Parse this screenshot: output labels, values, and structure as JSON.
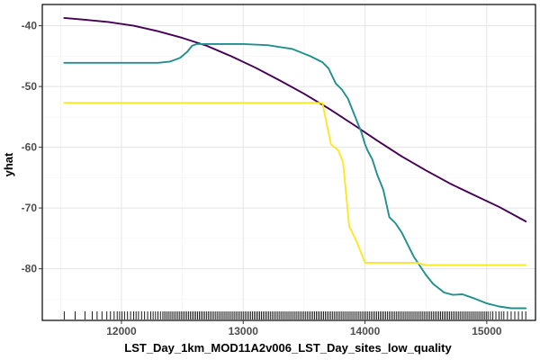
{
  "chart_data": {
    "type": "line",
    "xlabel": "LST_Day_1km_MOD11A2v006_LST_Day_sites_low_quality",
    "ylabel": "yhat",
    "xlim": [
      11350,
      15400
    ],
    "ylim": [
      -88.5,
      -36.5
    ],
    "x_ticks": [
      {
        "value": 12000,
        "label": "12000"
      },
      {
        "value": 13000,
        "label": "13000"
      },
      {
        "value": 14000,
        "label": "14000"
      },
      {
        "value": 15000,
        "label": "15000"
      }
    ],
    "y_ticks": [
      {
        "value": -40,
        "label": "-40"
      },
      {
        "value": -50,
        "label": "-50"
      },
      {
        "value": -60,
        "label": "-60"
      },
      {
        "value": -70,
        "label": "-70"
      },
      {
        "value": -80,
        "label": "-80"
      }
    ],
    "grid": true,
    "legend": "none",
    "series": [
      {
        "color": "#440154",
        "points": [
          [
            11530,
            -38.7
          ],
          [
            11700,
            -39.0
          ],
          [
            11900,
            -39.4
          ],
          [
            12100,
            -40.0
          ],
          [
            12300,
            -40.9
          ],
          [
            12500,
            -42.0
          ],
          [
            12700,
            -43.3
          ],
          [
            12900,
            -45.0
          ],
          [
            13100,
            -46.9
          ],
          [
            13300,
            -49.0
          ],
          [
            13500,
            -51.2
          ],
          [
            13700,
            -53.6
          ],
          [
            13900,
            -56.2
          ],
          [
            14100,
            -58.9
          ],
          [
            14300,
            -61.5
          ],
          [
            14500,
            -63.8
          ],
          [
            14700,
            -66.0
          ],
          [
            14900,
            -67.9
          ],
          [
            15100,
            -69.8
          ],
          [
            15320,
            -72.2
          ]
        ]
      },
      {
        "color": "#21908C",
        "points": [
          [
            11530,
            -46.1
          ],
          [
            11800,
            -46.1
          ],
          [
            12100,
            -46.1
          ],
          [
            12300,
            -46.1
          ],
          [
            12400,
            -45.9
          ],
          [
            12480,
            -45.3
          ],
          [
            12540,
            -44.3
          ],
          [
            12580,
            -43.3
          ],
          [
            12620,
            -43.0
          ],
          [
            12800,
            -43.0
          ],
          [
            13000,
            -43.0
          ],
          [
            13200,
            -43.2
          ],
          [
            13400,
            -43.8
          ],
          [
            13550,
            -45.0
          ],
          [
            13650,
            -46.0
          ],
          [
            13700,
            -47.0
          ],
          [
            13760,
            -49.5
          ],
          [
            13810,
            -50.5
          ],
          [
            13860,
            -52.0
          ],
          [
            13900,
            -54.0
          ],
          [
            13940,
            -56.0
          ],
          [
            13970,
            -57.5
          ],
          [
            14000,
            -59.5
          ],
          [
            14020,
            -60.5
          ],
          [
            14060,
            -62.0
          ],
          [
            14100,
            -64.5
          ],
          [
            14150,
            -67.0
          ],
          [
            14200,
            -71.5
          ],
          [
            14250,
            -72.5
          ],
          [
            14300,
            -74.0
          ],
          [
            14400,
            -78.0
          ],
          [
            14500,
            -81.0
          ],
          [
            14560,
            -82.5
          ],
          [
            14650,
            -83.9
          ],
          [
            14720,
            -84.3
          ],
          [
            14800,
            -84.2
          ],
          [
            14900,
            -84.9
          ],
          [
            15000,
            -85.7
          ],
          [
            15100,
            -86.2
          ],
          [
            15200,
            -86.5
          ],
          [
            15320,
            -86.5
          ]
        ]
      },
      {
        "color": "#FDE725",
        "points": [
          [
            11530,
            -52.7
          ],
          [
            12000,
            -52.7
          ],
          [
            12500,
            -52.7
          ],
          [
            13000,
            -52.7
          ],
          [
            13500,
            -52.7
          ],
          [
            13650,
            -52.7
          ],
          [
            13720,
            -59.5
          ],
          [
            13780,
            -60.5
          ],
          [
            13820,
            -62.5
          ],
          [
            13870,
            -73.0
          ],
          [
            13930,
            -75.5
          ],
          [
            14000,
            -79.0
          ],
          [
            14300,
            -79.0
          ],
          [
            14420,
            -79.0
          ],
          [
            14500,
            -79.4
          ],
          [
            15000,
            -79.4
          ],
          [
            15320,
            -79.4
          ]
        ]
      }
    ],
    "rug": [
      11530,
      11620,
      11700,
      11760,
      11800,
      11840,
      11880,
      11910,
      11940,
      11965,
      11985,
      12005,
      12025,
      12050,
      12075,
      12100,
      12120,
      12140,
      12165,
      12190,
      12215,
      12240,
      12260,
      12280,
      12300,
      12320,
      12340,
      12355,
      12370,
      12385,
      12400,
      12415,
      12430,
      12445,
      12460,
      12475,
      12490,
      12505,
      12520,
      12535,
      12550,
      12565,
      12580,
      12595,
      12610,
      12625,
      12640,
      12655,
      12670,
      12685,
      12700,
      12715,
      12730,
      12745,
      12760,
      12775,
      12790,
      12805,
      12820,
      12835,
      12850,
      12865,
      12880,
      12895,
      12910,
      12925,
      12940,
      12955,
      12970,
      12985,
      13000,
      13015,
      13030,
      13045,
      13060,
      13075,
      13090,
      13105,
      13120,
      13135,
      13150,
      13165,
      13180,
      13195,
      13210,
      13225,
      13240,
      13255,
      13270,
      13285,
      13300,
      13315,
      13330,
      13345,
      13360,
      13375,
      13390,
      13405,
      13420,
      13435,
      13450,
      13465,
      13480,
      13495,
      13510,
      13525,
      13540,
      13555,
      13570,
      13585,
      13600,
      13615,
      13630,
      13645,
      13660,
      13675,
      13690,
      13705,
      13720,
      13735,
      13750,
      13765,
      13780,
      13795,
      13810,
      13825,
      13840,
      13855,
      13870,
      13885,
      13900,
      13915,
      13930,
      13945,
      13960,
      13975,
      13990,
      14005,
      14020,
      14035,
      14050,
      14065,
      14080,
      14095,
      14110,
      14125,
      14140,
      14155,
      14170,
      14185,
      14200,
      14215,
      14230,
      14245,
      14260,
      14275,
      14290,
      14305,
      14320,
      14335,
      14350,
      14365,
      14380,
      14395,
      14410,
      14425,
      14440,
      14455,
      14470,
      14485,
      14500,
      14515,
      14530,
      14545,
      14560,
      14575,
      14590,
      14605,
      14620,
      14635,
      14650,
      14665,
      14680,
      14695,
      14710,
      14725,
      14740,
      14755,
      14770,
      14785,
      14800,
      14815,
      14830,
      14845,
      14860,
      14875,
      14890,
      14905,
      14920,
      14935,
      14950,
      14965,
      14980,
      14995,
      15010,
      15030,
      15050,
      15075,
      15100,
      15120,
      15140,
      15170,
      15200,
      15230,
      15260,
      15290,
      15320
    ]
  }
}
